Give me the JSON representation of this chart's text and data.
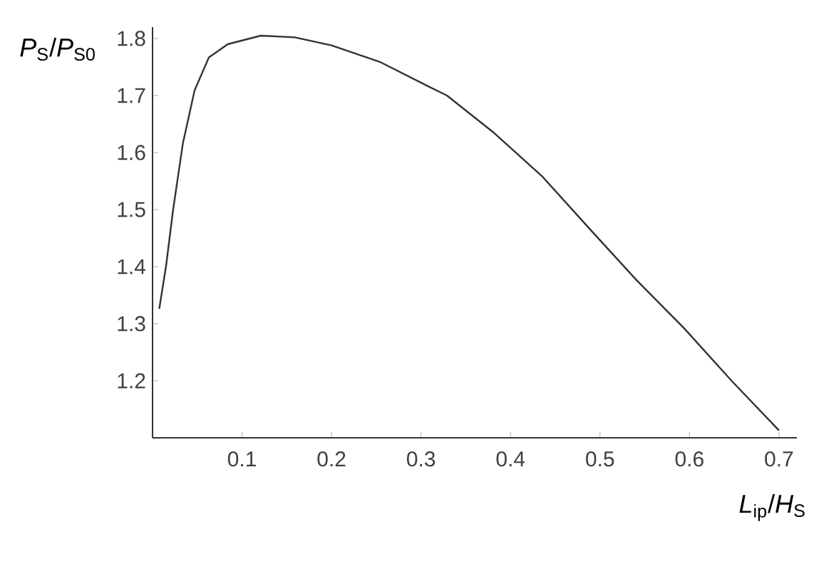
{
  "chart_data": {
    "type": "line",
    "xlabel": "*L*$_{ip}$/*H*$_{S}$",
    "ylabel": "*P*$_{S}$/*P*$_{S0}$",
    "x": [
      0.0075,
      0.015,
      0.023,
      0.034,
      0.047,
      0.063,
      0.084,
      0.121,
      0.159,
      0.2,
      0.254,
      0.307,
      0.329,
      0.382,
      0.435,
      0.488,
      0.541,
      0.594,
      0.647,
      0.7
    ],
    "series": [
      {
        "color": "#333333",
        "values": [
          1.326,
          1.4,
          1.5,
          1.617,
          1.709,
          1.767,
          1.79,
          1.805,
          1.802,
          1.788,
          1.759,
          1.717,
          1.7,
          1.634,
          1.559,
          1.467,
          1.376,
          1.292,
          1.2,
          1.113
        ]
      }
    ],
    "xlim": [
      0,
      0.72
    ],
    "ylim": [
      1.1,
      1.82
    ],
    "xticks": [
      0.1,
      0.2,
      0.3,
      0.4,
      0.5,
      0.6,
      0.7
    ],
    "yticks": [
      1.2,
      1.3,
      1.4,
      1.5,
      1.6,
      1.7,
      1.8
    ],
    "grid": false,
    "marker": "none",
    "line_style": "solid"
  }
}
